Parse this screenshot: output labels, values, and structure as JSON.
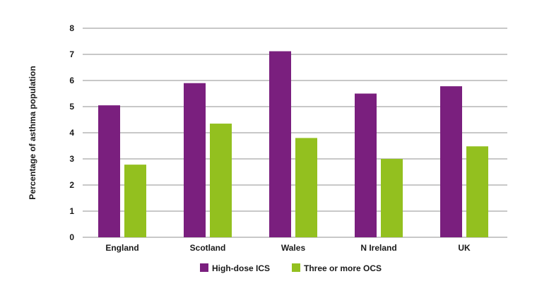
{
  "chart_data": {
    "type": "bar",
    "title": "",
    "xlabel": "",
    "ylabel": "Percentage of asthma population",
    "ylim": [
      0,
      8
    ],
    "yticks": [
      "0",
      "1",
      "2",
      "3",
      "4",
      "5",
      "6",
      "7",
      "8"
    ],
    "grid": true,
    "legend_position": "bottom",
    "categories": [
      "England",
      "Scotland",
      "Wales",
      "N Ireland",
      "UK"
    ],
    "series": [
      {
        "name": "High-dose ICS",
        "color": "#7a1f7e",
        "values": [
          5.05,
          5.9,
          7.12,
          5.5,
          5.78
        ]
      },
      {
        "name": "Three or more OCS",
        "color": "#93c01f",
        "values": [
          2.78,
          4.35,
          3.8,
          3.0,
          3.48
        ]
      }
    ]
  }
}
